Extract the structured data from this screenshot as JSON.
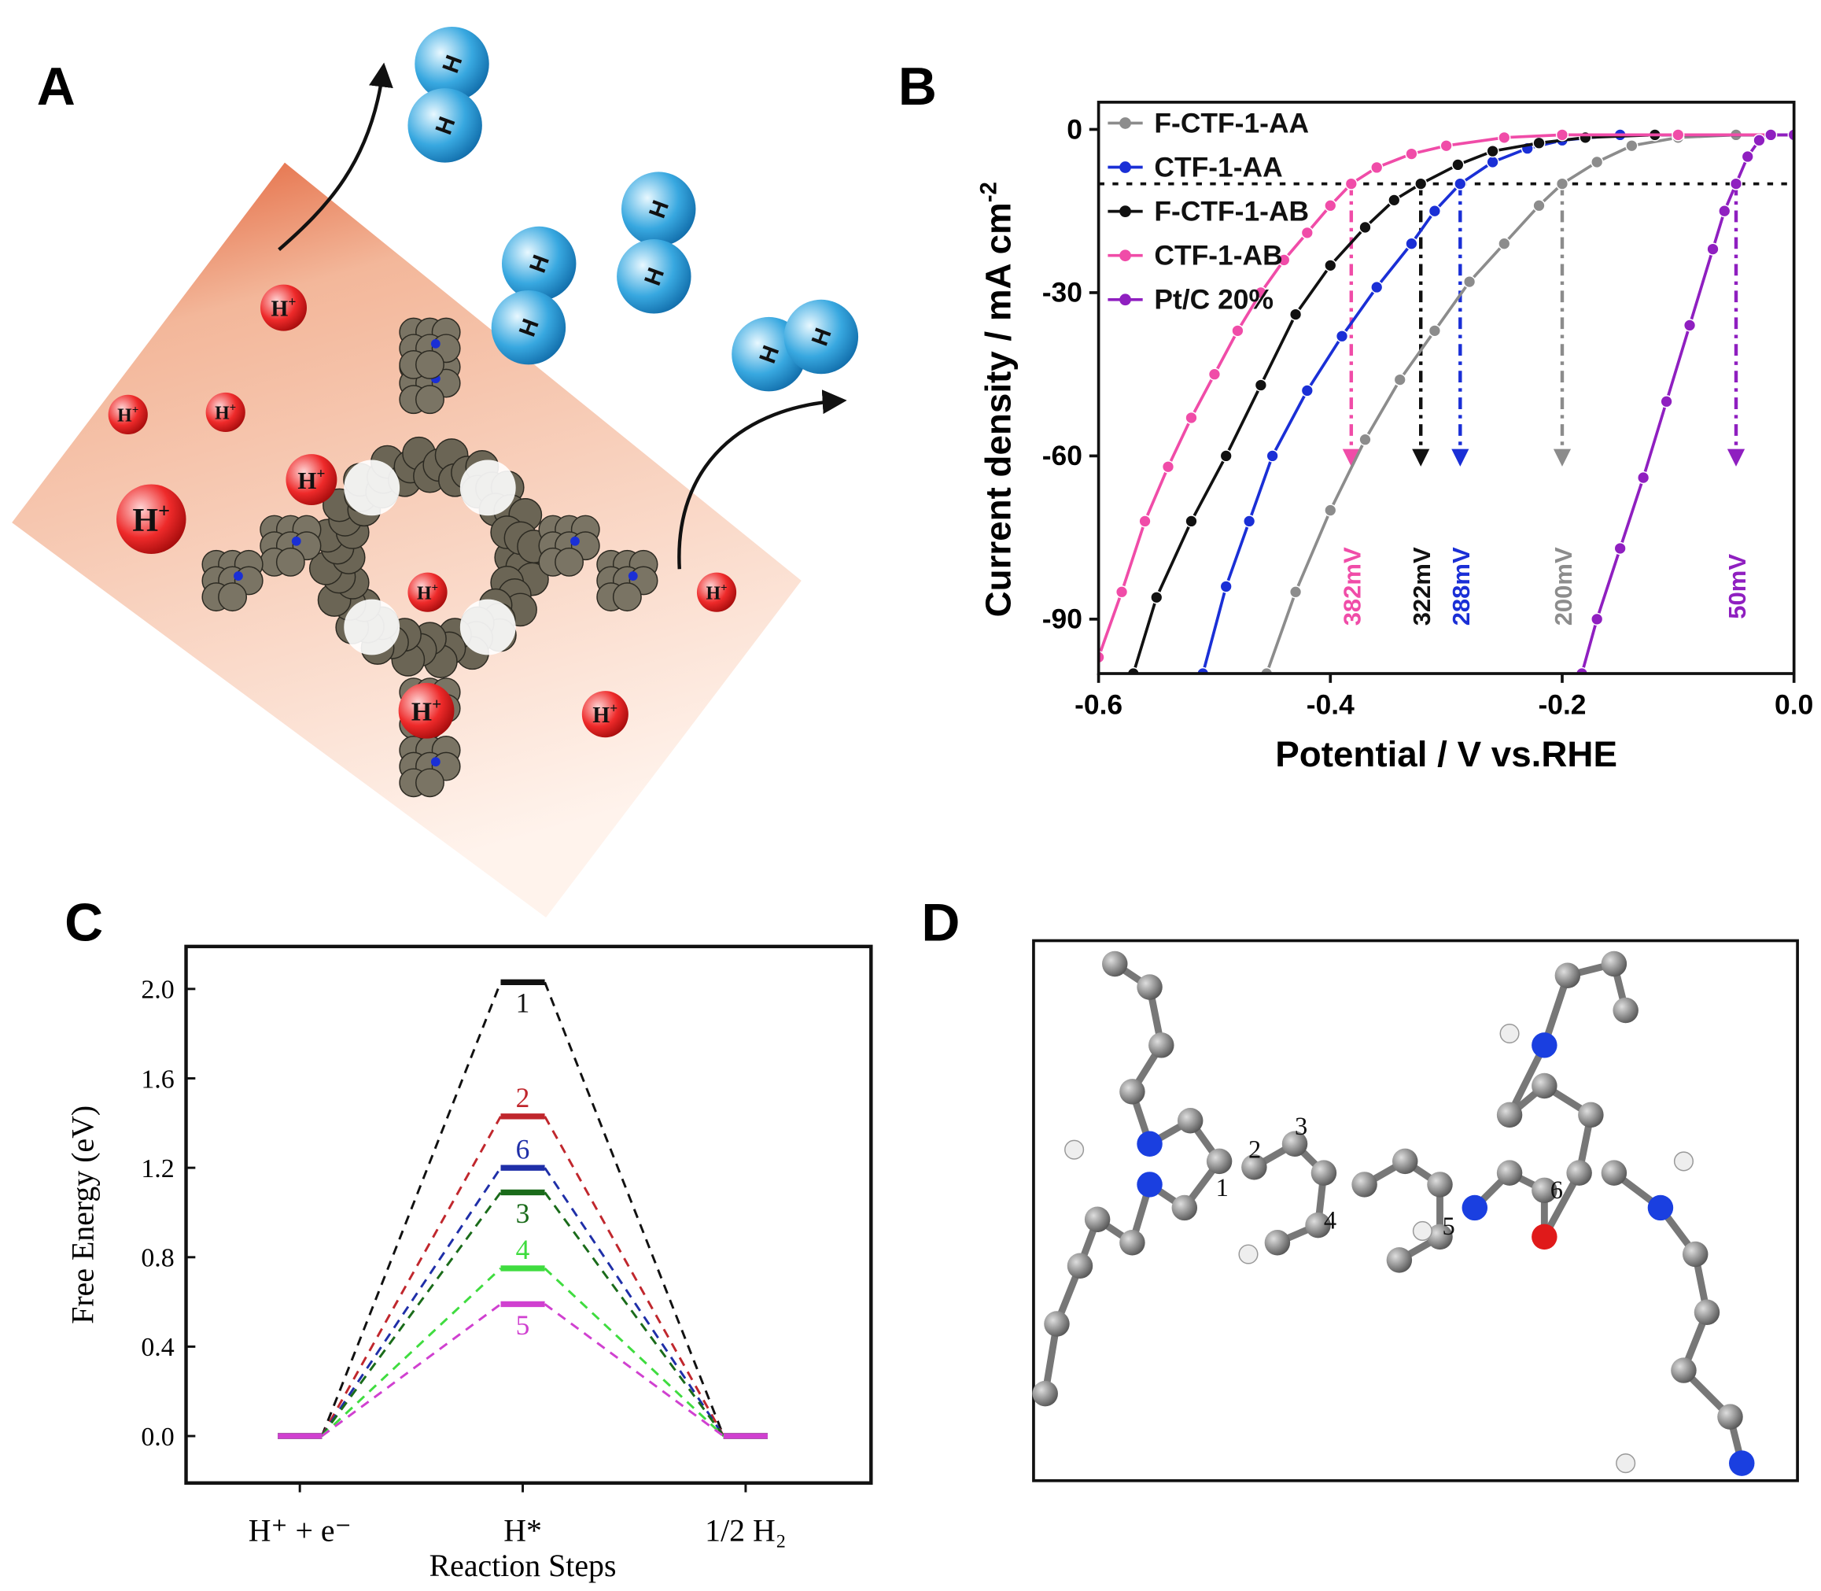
{
  "panels": [
    "A",
    "B",
    "C",
    "D"
  ],
  "panel_a": {
    "proton": "H",
    "charge": "+",
    "atom": "H"
  },
  "panel_d": {
    "atom_labels": [
      "1",
      "2",
      "3",
      "4",
      "5",
      "6"
    ]
  },
  "chart_data": [
    {
      "type": "line",
      "xlabel": "Potential / V vs.RHE",
      "ylabel": "Current density / mA cm",
      "ylabel_sup": "-2",
      "xlim": [
        -0.6,
        0
      ],
      "xticks": [
        -0.6,
        -0.4,
        -0.2,
        {
          "value": 0,
          "label": "0.0"
        }
      ],
      "ylim": [
        -100,
        5
      ],
      "yticks": [
        0,
        -30,
        -60,
        -90
      ],
      "legend": "upper left",
      "hline": -10,
      "series": [
        {
          "name": "F-CTF-1-AA",
          "color": "#8c8c8c",
          "x": [
            -0.455,
            -0.43,
            -0.4,
            -0.37,
            -0.34,
            -0.31,
            -0.28,
            -0.25,
            -0.22,
            -0.2,
            -0.17,
            -0.14,
            -0.1,
            -0.05,
            0
          ],
          "values": [
            -100,
            -85,
            -70,
            -57,
            -46,
            -37,
            -28,
            -21,
            -14,
            -10,
            -6,
            -3,
            -1.5,
            -1,
            -1
          ]
        },
        {
          "name": "CTF-1-AA",
          "color": "#1a2fd6",
          "x": [
            -0.51,
            -0.49,
            -0.47,
            -0.45,
            -0.42,
            -0.39,
            -0.36,
            -0.33,
            -0.31,
            -0.288,
            -0.26,
            -0.23,
            -0.2,
            -0.15,
            -0.1,
            0
          ],
          "values": [
            -100,
            -84,
            -72,
            -60,
            -48,
            -38,
            -29,
            -21,
            -15,
            -10,
            -6,
            -3.5,
            -2,
            -1,
            -1,
            -1
          ]
        },
        {
          "name": "F-CTF-1-AB",
          "color": "#111111",
          "x": [
            -0.57,
            -0.55,
            -0.52,
            -0.49,
            -0.46,
            -0.43,
            -0.4,
            -0.37,
            -0.345,
            -0.322,
            -0.29,
            -0.26,
            -0.22,
            -0.18,
            -0.12,
            0
          ],
          "values": [
            -100,
            -86,
            -72,
            -60,
            -47,
            -34,
            -25,
            -18,
            -13,
            -10,
            -6.5,
            -4,
            -2.5,
            -1.5,
            -1,
            -1
          ]
        },
        {
          "name": "CTF-1-AB",
          "color": "#f04ca8",
          "x": [
            -0.6,
            -0.58,
            -0.56,
            -0.54,
            -0.52,
            -0.5,
            -0.48,
            -0.46,
            -0.44,
            -0.42,
            -0.4,
            -0.382,
            -0.36,
            -0.33,
            -0.3,
            -0.25,
            -0.2,
            -0.1,
            0
          ],
          "values": [
            -97,
            -85,
            -72,
            -62,
            -53,
            -45,
            -37,
            -30,
            -24,
            -19,
            -14,
            -10,
            -7,
            -4.5,
            -3,
            -1.5,
            -1,
            -1,
            -1
          ]
        },
        {
          "name": "Pt/C 20%",
          "color": "#8f1fc0",
          "x": [
            -0.183,
            -0.17,
            -0.15,
            -0.13,
            -0.11,
            -0.09,
            -0.07,
            -0.06,
            -0.05,
            -0.04,
            -0.03,
            -0.02,
            0
          ],
          "values": [
            -100,
            -90,
            -77,
            -64,
            -50,
            -36,
            -22,
            -15,
            -10,
            -5,
            -2,
            -1,
            -1
          ]
        }
      ],
      "annotations": [
        {
          "x": -0.382,
          "label": "382mV",
          "color": "#f04ca8"
        },
        {
          "x": -0.322,
          "label": "322mV",
          "color": "#111111"
        },
        {
          "x": -0.288,
          "label": "288mV",
          "color": "#1a2fd6"
        },
        {
          "x": -0.2,
          "label": "200mV",
          "color": "#8c8c8c"
        },
        {
          "x": -0.05,
          "label": "50mV",
          "color": "#8f1fc0"
        }
      ]
    },
    {
      "type": "energy",
      "xlabel": "Reaction Steps",
      "ylabel": "Free Energy (eV)",
      "categories": [
        "H⁺ + e⁻",
        "H*",
        "1/2 H₂"
      ],
      "ylim": [
        -0.21,
        2.19
      ],
      "yticks": [
        {
          "value": 0,
          "label": "0.0"
        },
        0.4,
        0.8,
        1.2,
        1.6,
        {
          "value": 2,
          "label": "2.0"
        }
      ],
      "series": [
        {
          "name": "1",
          "color": "#111111",
          "values": [
            0,
            2.03,
            0
          ]
        },
        {
          "name": "2",
          "color": "#c0272d",
          "values": [
            0,
            1.43,
            0
          ]
        },
        {
          "name": "6",
          "color": "#1f2fa8",
          "values": [
            0,
            1.2,
            0
          ]
        },
        {
          "name": "3",
          "color": "#1a6b1a",
          "values": [
            0,
            1.09,
            0
          ]
        },
        {
          "name": "4",
          "color": "#3fdc3f",
          "values": [
            0,
            0.75,
            0
          ]
        },
        {
          "name": "5",
          "color": "#d040d0",
          "values": [
            0,
            0.59,
            0
          ]
        }
      ]
    }
  ]
}
